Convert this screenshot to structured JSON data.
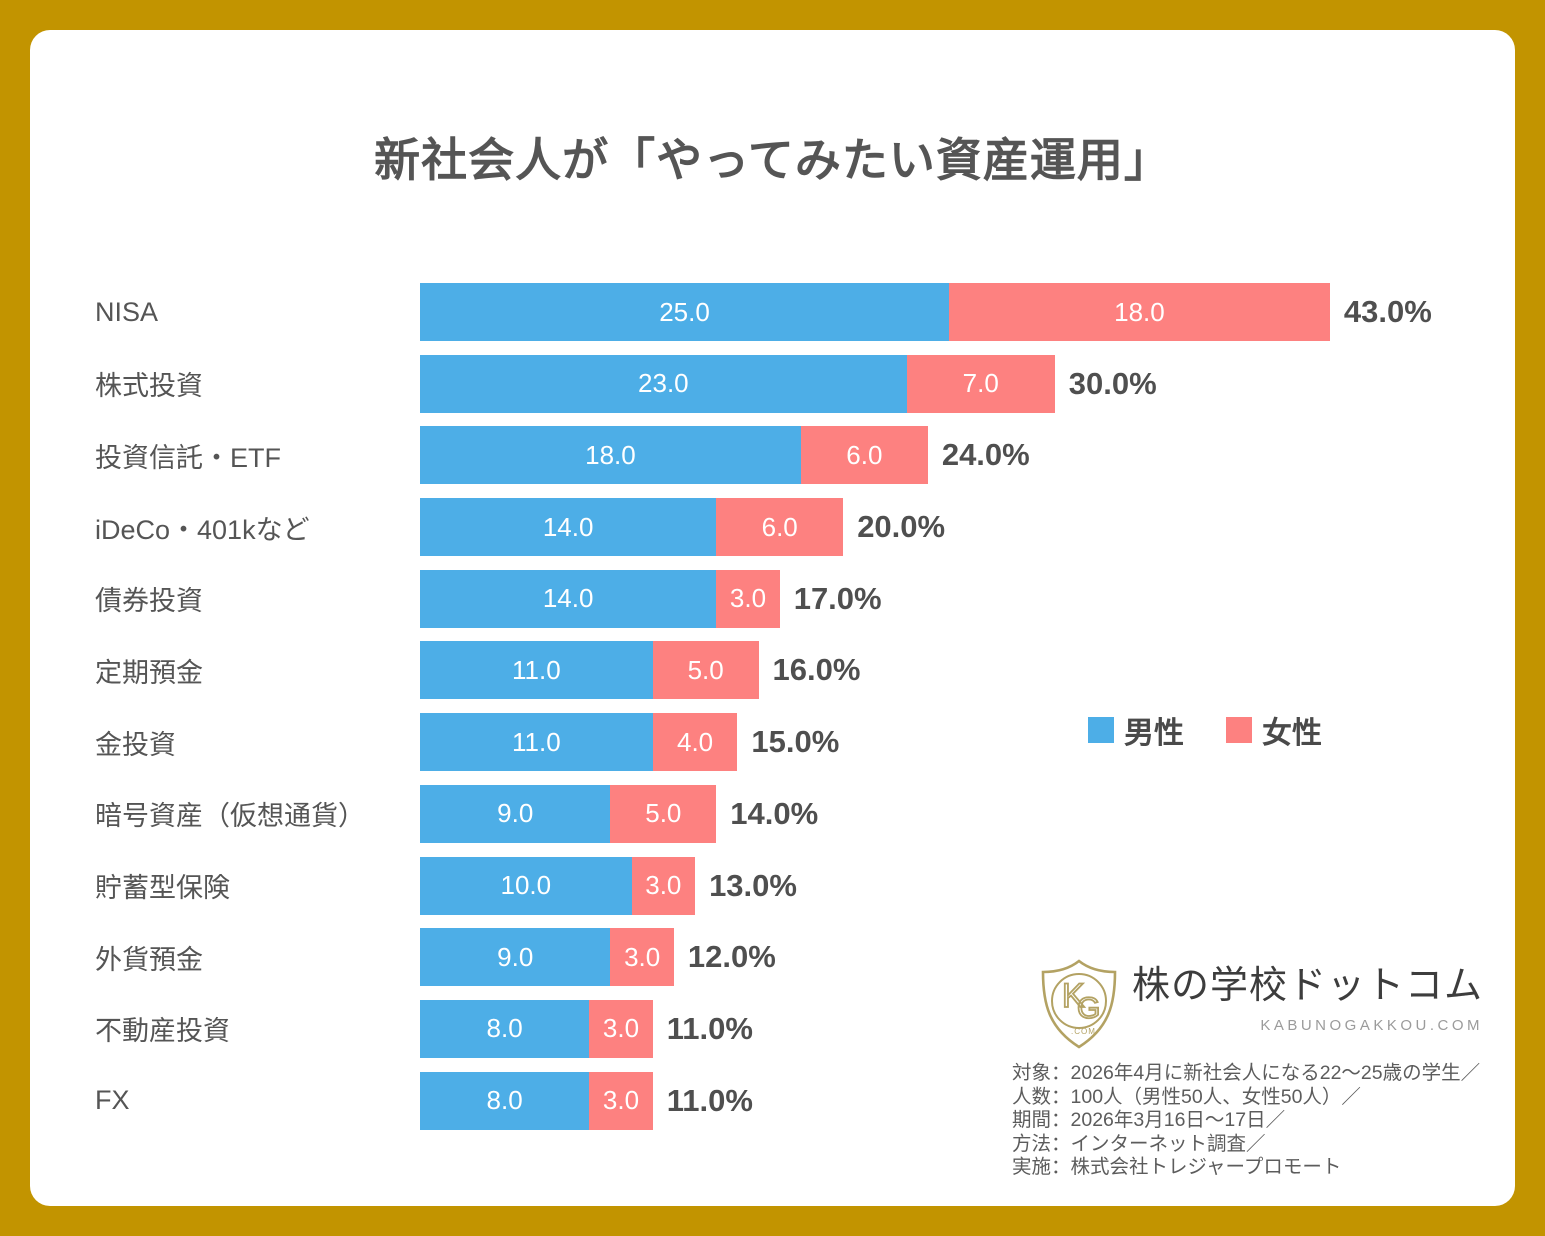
{
  "title": "新社会人が「やってみたい資産運用」",
  "chart_data": {
    "type": "bar",
    "orientation": "horizontal",
    "stacked": true,
    "title": "新社会人が「やってみたい資産運用」",
    "categories": [
      "NISA",
      "株式投資",
      "投資信託・ETF",
      "iDeCo・401kなど",
      "債券投資",
      "定期預金",
      "金投資",
      "暗号資産（仮想通貨）",
      "貯蓄型保険",
      "外貨預金",
      "不動産投資",
      "FX"
    ],
    "series": [
      {
        "name": "男性",
        "color": "#4DAEE7",
        "values": [
          25,
          23,
          18,
          14,
          14,
          11,
          11,
          9,
          10,
          9,
          8,
          8
        ]
      },
      {
        "name": "女性",
        "color": "#FD8180",
        "values": [
          18,
          7,
          6,
          6,
          3,
          5,
          4,
          5,
          3,
          3,
          3,
          3
        ]
      }
    ],
    "totals_percent": [
      43.0,
      30.0,
      24.0,
      20.0,
      17.0,
      16.0,
      15.0,
      14.0,
      13.0,
      12.0,
      11.0,
      11.0
    ],
    "xlim": [
      0,
      47
    ],
    "grid": false,
    "legend_position": "middle-right",
    "value_label_suffix": "",
    "total_label_suffix": "%"
  },
  "branding": {
    "shield_letter_k": "K",
    "shield_letter_g": "G",
    "shield_domain": ".COM",
    "brand_name": "株の学校ドットコム",
    "brand_domain": "KABUNOGAKKOU.COM"
  },
  "footnotes": {
    "lines": [
      "対象：2026年4月に新社会人になる22〜25歳の学生／",
      "人数：100人（男性50人、女性50人）／",
      "期間：2026年3月16日〜17日／",
      "方法：インターネット調査／",
      "実施：株式会社トレジャープロモート"
    ]
  },
  "colors": {
    "frame_gold": "#C29400",
    "card_white": "#ffffff",
    "male_blue": "#4DAEE7",
    "female_red": "#FD8180",
    "title_gray": "#555555",
    "percent_gray": "#4f4f4f",
    "logo_gold": "#b3a263"
  }
}
